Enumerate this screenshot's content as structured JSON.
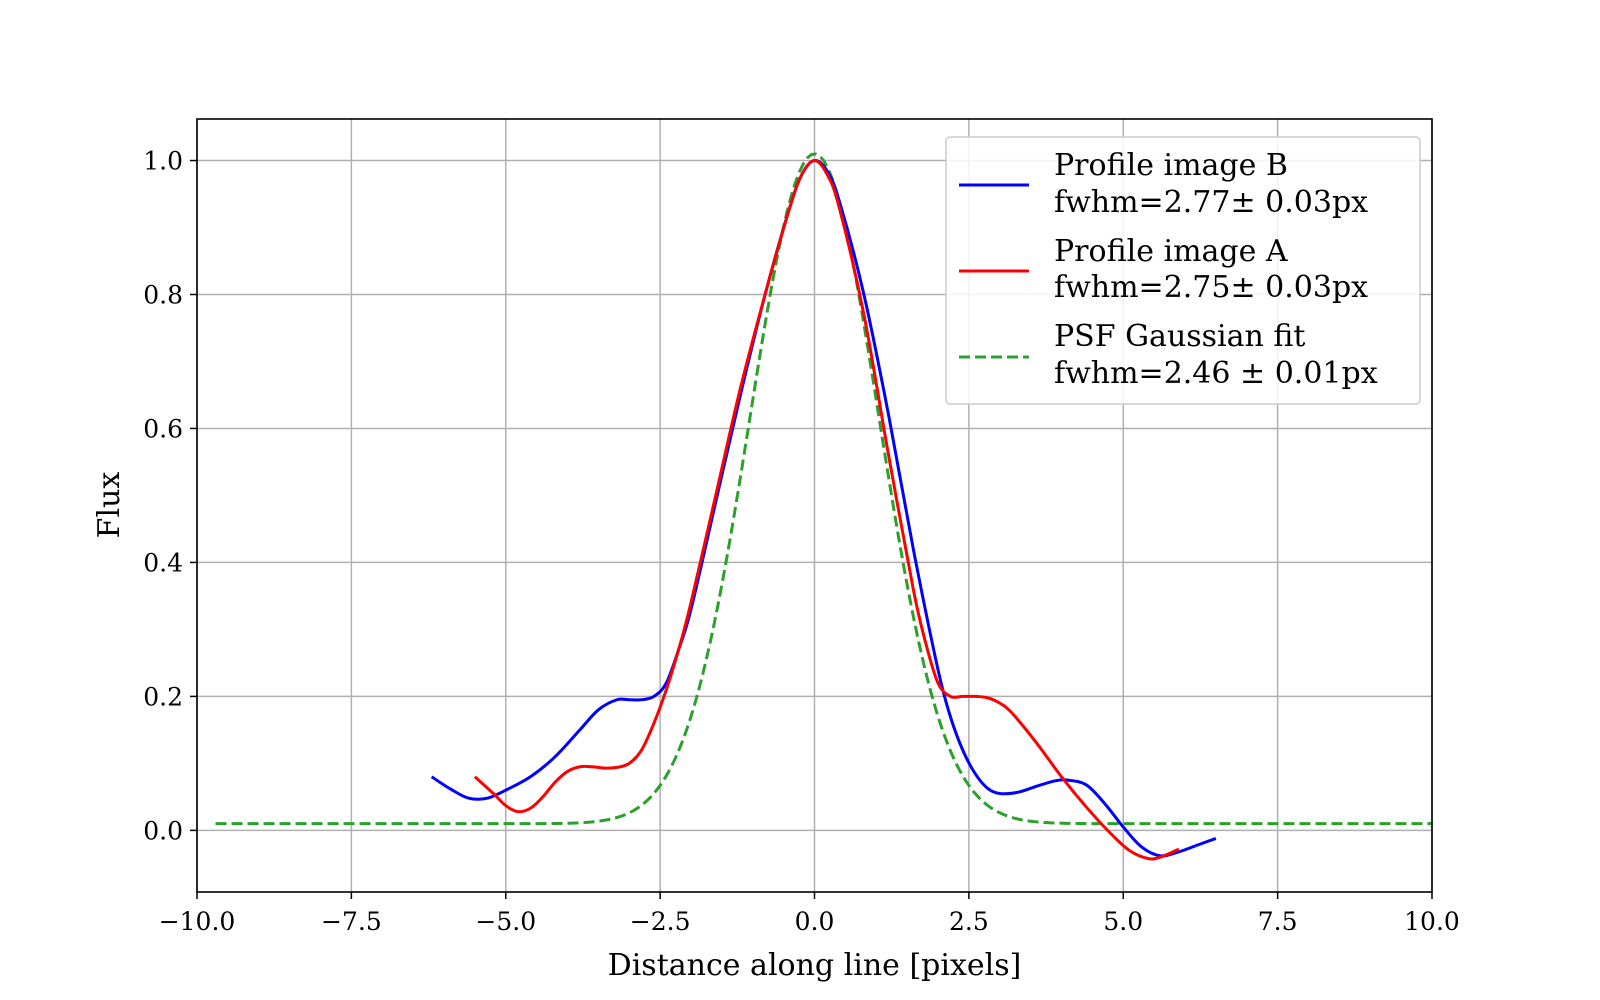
{
  "chart_data": {
    "type": "line",
    "title": "",
    "xlabel": "Distance along line [pixels]",
    "ylabel": "Flux",
    "xlim": [
      -10.0,
      10.0
    ],
    "ylim": [
      -0.092,
      1.062
    ],
    "grid": true,
    "legend_position": "top-right",
    "xticks": [
      -10.0,
      -7.5,
      -5.0,
      -2.5,
      0.0,
      2.5,
      5.0,
      7.5,
      10.0
    ],
    "xtick_labels": [
      "−10.0",
      "−7.5",
      "−5.0",
      "−2.5",
      "0.0",
      "2.5",
      "5.0",
      "7.5",
      "10.0"
    ],
    "yticks": [
      0.0,
      0.2,
      0.4,
      0.6,
      0.8,
      1.0
    ],
    "ytick_labels": [
      "0.0",
      "0.2",
      "0.4",
      "0.6",
      "0.8",
      "1.0"
    ],
    "series": [
      {
        "name": "Profile image B",
        "legend_lines": [
          "Profile image B",
          "fwhm=2.77± 0.03px"
        ],
        "color": "#0000ff",
        "style": "solid",
        "x": [
          -6.2,
          -5.9,
          -5.6,
          -5.3,
          -5.0,
          -4.6,
          -4.2,
          -3.8,
          -3.5,
          -3.2,
          -3.0,
          -2.8,
          -2.6,
          -2.4,
          -2.2,
          -2.0,
          -1.6,
          -1.2,
          -0.8,
          -0.4,
          -0.2,
          0.0,
          0.2,
          0.4,
          0.8,
          1.2,
          1.6,
          2.0,
          2.2,
          2.4,
          2.6,
          2.8,
          3.0,
          3.3,
          3.6,
          3.9,
          4.1,
          4.4,
          4.7,
          5.0,
          5.3,
          5.6,
          5.9,
          6.2,
          6.5
        ],
        "y": [
          0.08,
          0.062,
          0.048,
          0.048,
          0.06,
          0.08,
          0.11,
          0.15,
          0.18,
          0.195,
          0.195,
          0.195,
          0.2,
          0.22,
          0.27,
          0.33,
          0.49,
          0.65,
          0.8,
          0.93,
          0.98,
          1.0,
          0.985,
          0.94,
          0.8,
          0.62,
          0.42,
          0.24,
          0.17,
          0.12,
          0.085,
          0.063,
          0.055,
          0.057,
          0.066,
          0.074,
          0.075,
          0.068,
          0.04,
          0.005,
          -0.025,
          -0.038,
          -0.032,
          -0.022,
          -0.012
        ]
      },
      {
        "name": "Profile image A",
        "legend_lines": [
          "Profile image A",
          "fwhm=2.75± 0.03px"
        ],
        "color": "#ff0000",
        "style": "solid",
        "x": [
          -5.5,
          -5.2,
          -5.0,
          -4.8,
          -4.6,
          -4.4,
          -4.2,
          -4.0,
          -3.8,
          -3.6,
          -3.4,
          -3.2,
          -3.0,
          -2.8,
          -2.6,
          -2.4,
          -2.2,
          -2.0,
          -1.6,
          -1.2,
          -0.8,
          -0.4,
          -0.2,
          0.0,
          0.2,
          0.4,
          0.8,
          1.2,
          1.6,
          1.8,
          2.0,
          2.2,
          2.4,
          2.6,
          2.8,
          3.0,
          3.2,
          3.6,
          4.0,
          4.4,
          4.8,
          5.1,
          5.4,
          5.6,
          5.9
        ],
        "y": [
          0.08,
          0.055,
          0.037,
          0.028,
          0.033,
          0.05,
          0.072,
          0.088,
          0.095,
          0.095,
          0.093,
          0.094,
          0.1,
          0.12,
          0.16,
          0.21,
          0.27,
          0.34,
          0.5,
          0.66,
          0.8,
          0.93,
          0.98,
          1.0,
          0.98,
          0.93,
          0.77,
          0.56,
          0.36,
          0.28,
          0.22,
          0.2,
          0.2,
          0.2,
          0.198,
          0.19,
          0.175,
          0.13,
          0.08,
          0.035,
          -0.005,
          -0.03,
          -0.042,
          -0.04,
          -0.028
        ]
      },
      {
        "name": "PSF Gaussian fit",
        "legend_lines": [
          "PSF Gaussian fit",
          "fwhm=2.46 ± 0.01px"
        ],
        "color": "#2ca02c",
        "style": "dashed",
        "model": "gaussian",
        "x_range": [
          -9.7,
          10.0
        ],
        "amplitude": 1.0,
        "center": 0.0,
        "fwhm": 2.46,
        "offset": 0.01
      }
    ]
  }
}
